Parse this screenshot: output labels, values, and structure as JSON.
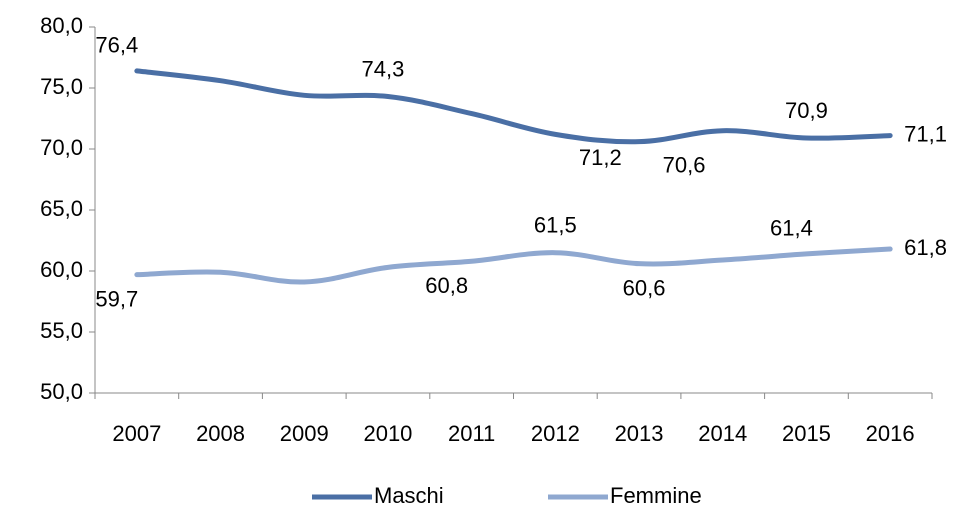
{
  "chart_data": {
    "type": "line",
    "categories": [
      "2007",
      "2008",
      "2009",
      "2010",
      "2011",
      "2012",
      "2013",
      "2014",
      "2015",
      "2016"
    ],
    "series": [
      {
        "name": "Maschi",
        "color": "#4a6fa5",
        "values": [
          76.4,
          75.6,
          74.4,
          74.3,
          72.9,
          71.2,
          70.6,
          71.5,
          70.9,
          71.1
        ],
        "value_labels": [
          "76,4",
          null,
          null,
          "74,3",
          null,
          "71,2",
          "70,6",
          null,
          "70,9",
          "71,1"
        ]
      },
      {
        "name": "Femmine",
        "color": "#8fa8d0",
        "values": [
          59.7,
          59.9,
          59.1,
          60.3,
          60.8,
          61.5,
          60.6,
          60.9,
          61.4,
          61.8
        ],
        "value_labels": [
          "59,7",
          null,
          null,
          null,
          "60,8",
          "61,5",
          "60,6",
          null,
          "61,4",
          "61,8"
        ]
      }
    ],
    "ylim": [
      50,
      80
    ],
    "yticks": [
      {
        "value": 50,
        "label": "50,0"
      },
      {
        "value": 55,
        "label": "55,0"
      },
      {
        "value": 60,
        "label": "60,0"
      },
      {
        "value": 65,
        "label": "65,0"
      },
      {
        "value": 70,
        "label": "70,0"
      },
      {
        "value": 75,
        "label": "75,0"
      },
      {
        "value": 80,
        "label": "80,0"
      }
    ],
    "legend": "bottom"
  }
}
